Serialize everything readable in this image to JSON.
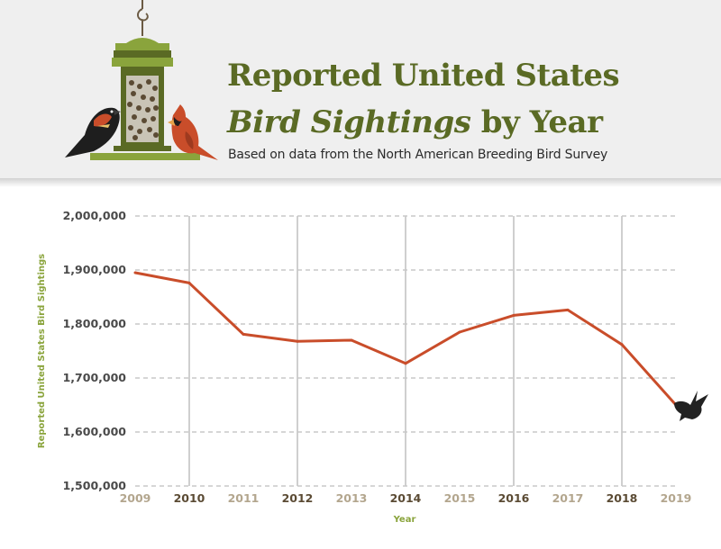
{
  "header": {
    "title_line1": "Reported United States",
    "title_line2_italic": "Bird Sightings",
    "title_line2_rest": " by Year",
    "subtitle": "Based on data from the North American Breeding Bird Survey"
  },
  "colors": {
    "title": "#5a6a24",
    "line": "#c94d2a",
    "axis_title": "#8aa43c",
    "tick_dark": "#5b4b34",
    "tick_light": "#b3a68e",
    "grid": "#c8c8c8"
  },
  "icons": [
    "bird-feeder-icon",
    "red-winged-blackbird-icon",
    "cardinal-icon",
    "flying-bird-icon"
  ],
  "chart_data": {
    "type": "line",
    "title": "Reported United States Bird Sightings by Year",
    "xlabel": "Year",
    "ylabel": "Reported United States Bird Sightings",
    "x": [
      "2009",
      "2010",
      "2011",
      "2012",
      "2013",
      "2014",
      "2015",
      "2016",
      "2017",
      "2018",
      "2019"
    ],
    "series": [
      {
        "values": [
          1895000,
          1876000,
          1781000,
          1768000,
          1770000,
          1727000,
          1785000,
          1816000,
          1826000,
          1762000,
          1650000
        ]
      }
    ],
    "y_ticks": [
      "1,500,000",
      "1,600,000",
      "1,700,000",
      "1,800,000",
      "1,900,000",
      "2,000,000"
    ],
    "ylim": [
      1500000,
      2000000
    ],
    "grid": "dashed horizontal, solid vertical at even years",
    "legend": "none"
  }
}
